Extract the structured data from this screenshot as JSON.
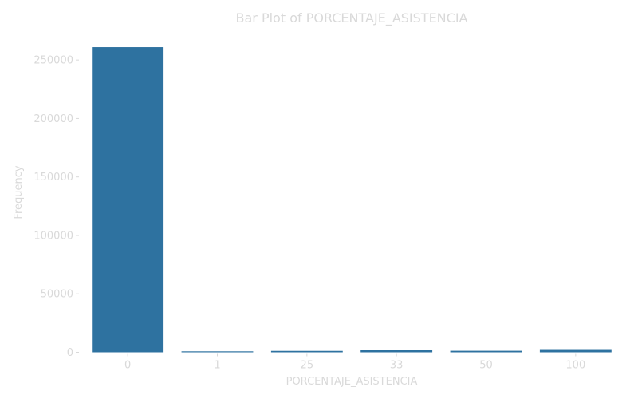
{
  "chart_data": {
    "type": "bar",
    "title": "Bar Plot of PORCENTAJE_ASISTENCIA",
    "xlabel": "PORCENTAJE_ASISTENCIA",
    "ylabel": "Frequency",
    "categories": [
      "0",
      "1",
      "25",
      "33",
      "50",
      "100"
    ],
    "values": [
      261000,
      700,
      1200,
      2100,
      1300,
      2700
    ],
    "yticks": [
      0,
      50000,
      100000,
      150000,
      200000,
      250000
    ],
    "ytick_labels": [
      "0",
      "50000",
      "100000",
      "150000",
      "200000",
      "250000"
    ],
    "ylim": [
      0,
      274000
    ],
    "grid": false,
    "legend": "none"
  },
  "colors": {
    "bar": "#2e72a0",
    "text": "#d9d9d9",
    "tick": "#d9d9d9"
  }
}
